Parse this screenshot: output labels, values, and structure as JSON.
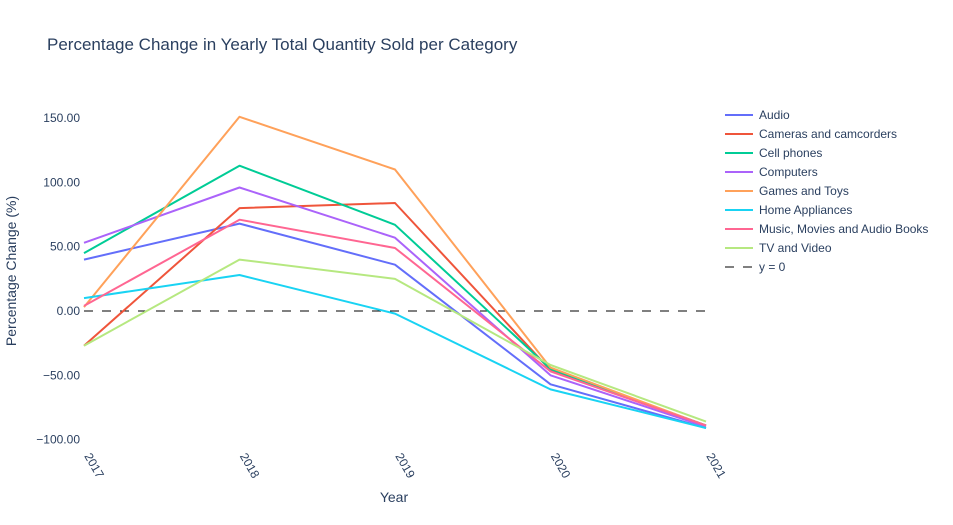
{
  "chart_data": {
    "type": "line",
    "title": "Percentage Change in Yearly Total Quantity Sold per Category",
    "xlabel": "Year",
    "ylabel": "Percentage Change (%)",
    "x": [
      "2017",
      "2018",
      "2019",
      "2020",
      "2021"
    ],
    "ylim": [
      -105,
      175
    ],
    "yticks": [
      -100,
      -50,
      0,
      50,
      100,
      150
    ],
    "ytick_labels": [
      "−100.00",
      "−50.00",
      "0.00",
      "50.00",
      "100.00",
      "150.00"
    ],
    "grid": false,
    "legend_position": "right",
    "series": [
      {
        "name": "Audio",
        "color": "#636efa",
        "values": [
          40,
          68,
          36,
          -57,
          -91
        ]
      },
      {
        "name": "Cameras and camcorders",
        "color": "#ef553b",
        "values": [
          -27,
          80,
          84,
          -46,
          -89
        ]
      },
      {
        "name": "Cell phones",
        "color": "#00cc96",
        "values": [
          45,
          113,
          67,
          -45,
          -89
        ]
      },
      {
        "name": "Computers",
        "color": "#ab63fa",
        "values": [
          53,
          96,
          57,
          -50,
          -90
        ]
      },
      {
        "name": "Games and Toys",
        "color": "#ffa15a",
        "values": [
          3,
          151,
          110,
          -44,
          -89
        ]
      },
      {
        "name": "Home Appliances",
        "color": "#19d3f3",
        "values": [
          10,
          28,
          -2,
          -61,
          -91
        ]
      },
      {
        "name": "Music, Movies and Audio Books",
        "color": "#ff6692",
        "values": [
          4,
          71,
          49,
          -47,
          -89
        ]
      },
      {
        "name": "TV and Video",
        "color": "#b6e880",
        "values": [
          -27,
          40,
          25,
          -42,
          -86
        ]
      }
    ],
    "reference_line": {
      "name": "y = 0",
      "value": 0,
      "color": "#000000",
      "style": "dashed"
    }
  }
}
